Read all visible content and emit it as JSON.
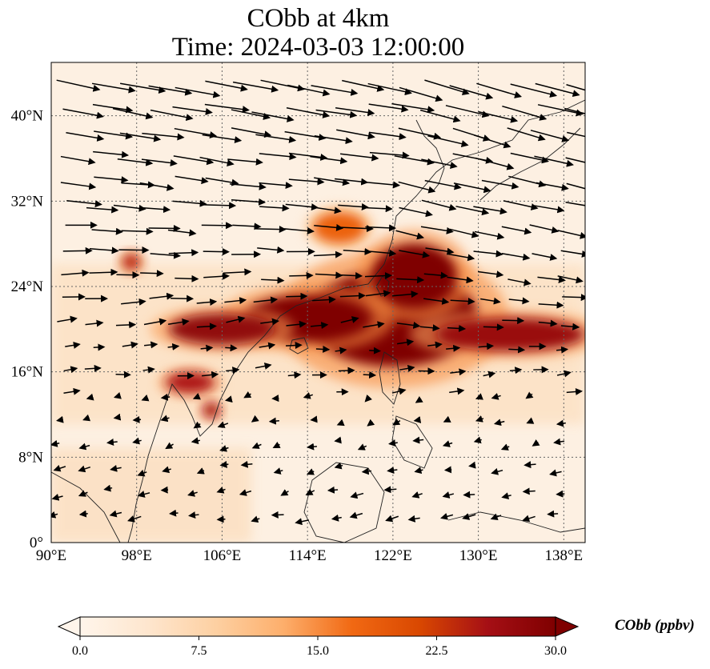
{
  "title": {
    "line1": "CObb at 4km",
    "line2": "Time: 2024-03-03 12:00:00"
  },
  "map": {
    "extent": {
      "lon_min": 90,
      "lon_max": 140,
      "lat_min": 0,
      "lat_max": 45
    },
    "lon_ticks": [
      {
        "value": 90,
        "label": "90°E"
      },
      {
        "value": 98,
        "label": "98°E"
      },
      {
        "value": 106,
        "label": "106°E"
      },
      {
        "value": 114,
        "label": "114°E"
      },
      {
        "value": 122,
        "label": "122°E"
      },
      {
        "value": 130,
        "label": "130°E"
      },
      {
        "value": 138,
        "label": "138°E"
      }
    ],
    "lat_ticks": [
      {
        "value": 0,
        "label": "0°"
      },
      {
        "value": 8,
        "label": "8°N"
      },
      {
        "value": 16,
        "label": "16°N"
      },
      {
        "value": 24,
        "label": "24°N"
      },
      {
        "value": 32,
        "label": "32°N"
      },
      {
        "value": 40,
        "label": "40°N"
      }
    ],
    "gridlines": true,
    "field": "CObb",
    "plumes": [
      {
        "name": "main-plume-east",
        "lon": 122,
        "lat": 21,
        "rlon": 8,
        "rlat": 4.5,
        "value": 30
      },
      {
        "name": "plume-taiwan",
        "lon": 124,
        "lat": 25,
        "rlon": 4,
        "rlat": 3,
        "value": 30
      },
      {
        "name": "plume-south-china",
        "lon": 114,
        "lat": 21,
        "rlon": 6,
        "rlat": 2.2,
        "value": 30
      },
      {
        "name": "plume-gulf-tonkin",
        "lon": 106,
        "lat": 20,
        "rlon": 5,
        "rlat": 1.5,
        "value": 28
      },
      {
        "name": "plume-tail-east",
        "lon": 133,
        "lat": 19.5,
        "rlon": 7,
        "rlat": 1.6,
        "value": 27
      },
      {
        "name": "plume-laos",
        "lon": 103,
        "lat": 15,
        "rlon": 2.3,
        "rlat": 1.0,
        "value": 25
      },
      {
        "name": "plume-cambodia",
        "lon": 105,
        "lat": 12.4,
        "rlon": 0.8,
        "rlat": 0.7,
        "value": 26
      },
      {
        "name": "plume-myanmar",
        "lon": 97.5,
        "lat": 26.3,
        "rlon": 0.9,
        "rlat": 0.8,
        "value": 24
      },
      {
        "name": "plume-yangtze",
        "lon": 117,
        "lat": 29.5,
        "rlon": 2.5,
        "rlat": 1.5,
        "value": 18
      }
    ],
    "wind_vectors_note": ""
  },
  "colorbar": {
    "vmin": 0,
    "vmax": 30,
    "ticks": [
      "0.0",
      "7.5",
      "15.0",
      "22.5",
      "30.0"
    ],
    "label": "CObb (ppbv)",
    "colormap": [
      "#fff5eb",
      "#fee6ce",
      "#fdd0a2",
      "#fdae6b",
      "#f16913",
      "#d94801",
      "#a50f15",
      "#7f0000"
    ],
    "extend": "both"
  }
}
